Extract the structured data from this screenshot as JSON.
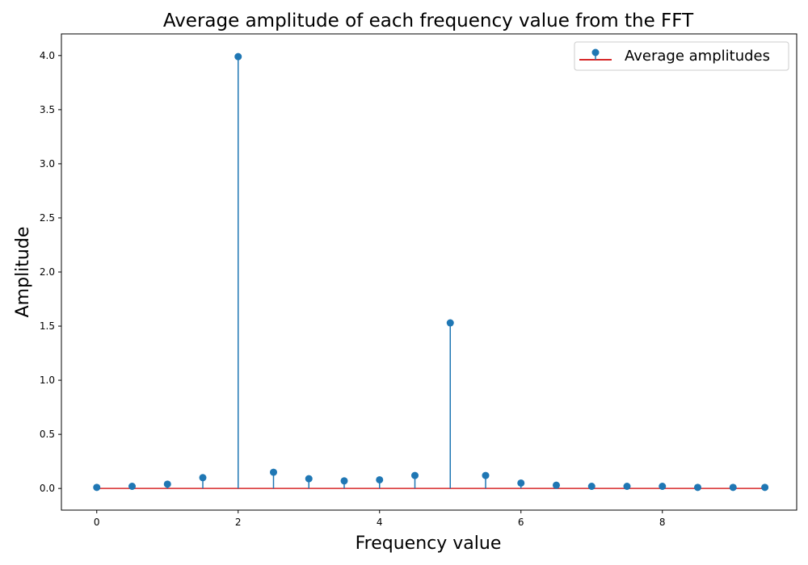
{
  "chart_data": {
    "type": "stem",
    "title": "Average amplitude of each frequency value from the FFT",
    "xlabel": "Frequency value",
    "ylabel": "Amplitude",
    "xlim": [
      -0.5,
      9.9
    ],
    "ylim": [
      -0.2,
      4.2
    ],
    "xticks": [
      0,
      2,
      4,
      6,
      8
    ],
    "yticks": [
      0.0,
      0.5,
      1.0,
      1.5,
      2.0,
      2.5,
      3.0,
      3.5,
      4.0
    ],
    "xtick_labels": [
      "0",
      "2",
      "4",
      "6",
      "8"
    ],
    "ytick_labels": [
      "0.0",
      "0.5",
      "1.0",
      "1.5",
      "2.0",
      "2.5",
      "3.0",
      "3.5",
      "4.0"
    ],
    "grid": false,
    "legend": {
      "position": "top-right",
      "label": "Average amplitudes"
    },
    "colors": {
      "stem": "#1f77b4",
      "baseline": "#d62728"
    },
    "series": [
      {
        "name": "Average amplitudes",
        "x": [
          0.0,
          0.5,
          1.0,
          1.5,
          2.0,
          2.5,
          3.0,
          3.5,
          4.0,
          4.5,
          5.0,
          5.5,
          6.0,
          6.5,
          7.0,
          7.5,
          8.0,
          8.5,
          9.0,
          9.45
        ],
        "y": [
          0.01,
          0.02,
          0.04,
          0.1,
          3.99,
          0.15,
          0.09,
          0.07,
          0.08,
          0.12,
          1.53,
          0.12,
          0.05,
          0.03,
          0.02,
          0.02,
          0.02,
          0.01,
          0.01,
          0.01
        ]
      }
    ]
  }
}
